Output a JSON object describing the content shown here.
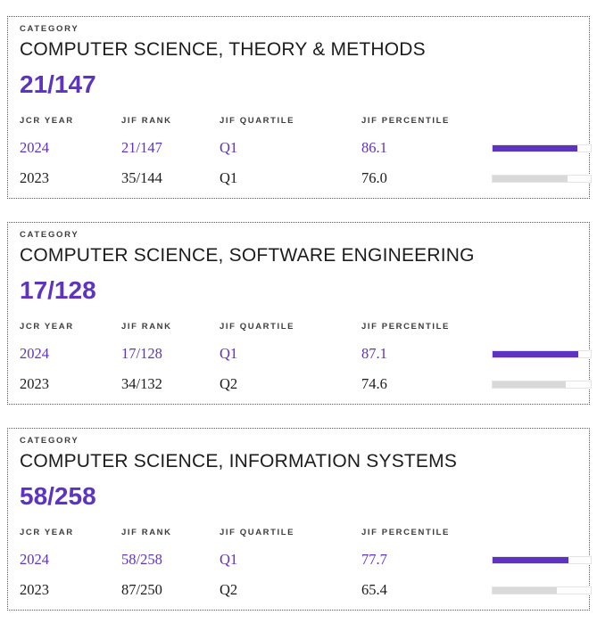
{
  "accent_color": "#5E33BF",
  "gray_bar_color": "#d9d9d9",
  "category_label": "CATEGORY",
  "table_headers": {
    "year": "JCR YEAR",
    "rank": "JIF RANK",
    "quartile": "JIF QUARTILE",
    "percentile": "JIF PERCENTILE"
  },
  "cards": [
    {
      "category": "COMPUTER SCIENCE, THEORY & METHODS",
      "rank": "21/147",
      "rows": [
        {
          "year": "2024",
          "rank": "21/147",
          "quartile": "Q1",
          "percentile": "86.1",
          "percent": 86.1,
          "highlight": true
        },
        {
          "year": "2023",
          "rank": "35/144",
          "quartile": "Q1",
          "percentile": "76.0",
          "percent": 76.0,
          "highlight": false
        }
      ]
    },
    {
      "category": "COMPUTER SCIENCE, SOFTWARE ENGINEERING",
      "rank": "17/128",
      "rows": [
        {
          "year": "2024",
          "rank": "17/128",
          "quartile": "Q1",
          "percentile": "87.1",
          "percent": 87.1,
          "highlight": true
        },
        {
          "year": "2023",
          "rank": "34/132",
          "quartile": "Q2",
          "percentile": "74.6",
          "percent": 74.6,
          "highlight": false
        }
      ]
    },
    {
      "category": "COMPUTER SCIENCE, INFORMATION SYSTEMS",
      "rank": "58/258",
      "rows": [
        {
          "year": "2024",
          "rank": "58/258",
          "quartile": "Q1",
          "percentile": "77.7",
          "percent": 77.7,
          "highlight": true
        },
        {
          "year": "2023",
          "rank": "87/250",
          "quartile": "Q2",
          "percentile": "65.4",
          "percent": 65.4,
          "highlight": false
        }
      ]
    }
  ]
}
